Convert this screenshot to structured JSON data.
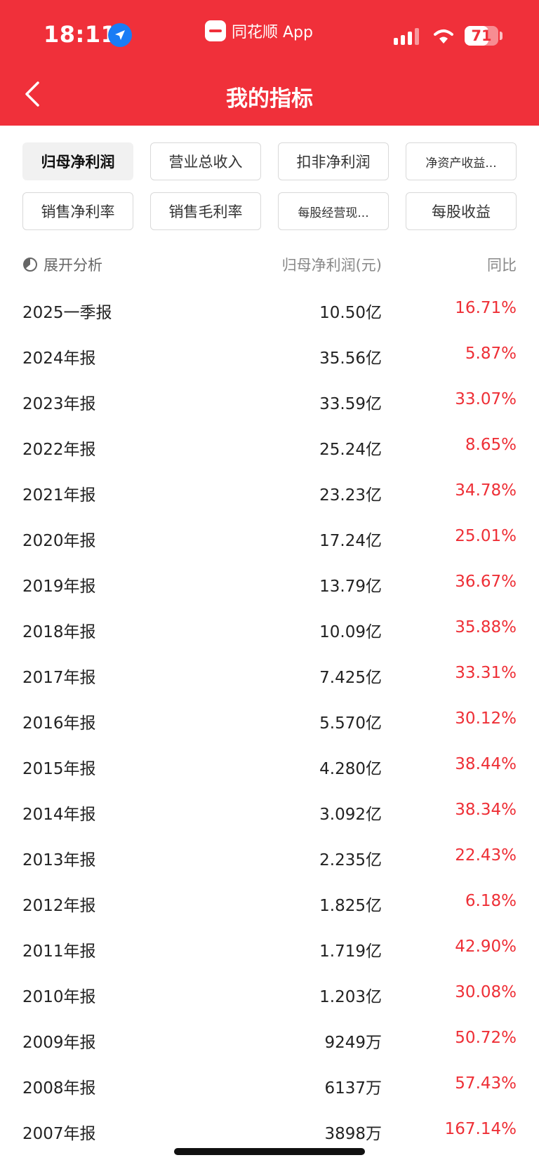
{
  "status_bar": {
    "time": "18:11",
    "app_name": "同花顺 App",
    "battery": "71",
    "battery_level": 0.71
  },
  "nav": {
    "title": "我的指标"
  },
  "tabs": [
    {
      "label": "归母净利润",
      "active": true
    },
    {
      "label": "营业总收入"
    },
    {
      "label": "扣非净利润"
    },
    {
      "label": "净资产收益..."
    },
    {
      "label": "销售净利率"
    },
    {
      "label": "销售毛利率"
    },
    {
      "label": "每股经营现..."
    },
    {
      "label": "每股收益"
    }
  ],
  "table": {
    "analysis_label": "展开分析",
    "value_header": "归母净利润(元)",
    "yoy_header": "同比",
    "rows": [
      {
        "period": "2025一季报",
        "value": "10.50亿",
        "yoy": "16.71%"
      },
      {
        "period": "2024年报",
        "value": "35.56亿",
        "yoy": "5.87%"
      },
      {
        "period": "2023年报",
        "value": "33.59亿",
        "yoy": "33.07%"
      },
      {
        "period": "2022年报",
        "value": "25.24亿",
        "yoy": "8.65%"
      },
      {
        "period": "2021年报",
        "value": "23.23亿",
        "yoy": "34.78%"
      },
      {
        "period": "2020年报",
        "value": "17.24亿",
        "yoy": "25.01%"
      },
      {
        "period": "2019年报",
        "value": "13.79亿",
        "yoy": "36.67%"
      },
      {
        "period": "2018年报",
        "value": "10.09亿",
        "yoy": "35.88%"
      },
      {
        "period": "2017年报",
        "value": "7.425亿",
        "yoy": "33.31%"
      },
      {
        "period": "2016年报",
        "value": "5.570亿",
        "yoy": "30.12%"
      },
      {
        "period": "2015年报",
        "value": "4.280亿",
        "yoy": "38.44%"
      },
      {
        "period": "2014年报",
        "value": "3.092亿",
        "yoy": "38.34%"
      },
      {
        "period": "2013年报",
        "value": "2.235亿",
        "yoy": "22.43%"
      },
      {
        "period": "2012年报",
        "value": "1.825亿",
        "yoy": "6.18%"
      },
      {
        "period": "2011年报",
        "value": "1.719亿",
        "yoy": "42.90%"
      },
      {
        "period": "2010年报",
        "value": "1.203亿",
        "yoy": "30.08%"
      },
      {
        "period": "2009年报",
        "value": "9249万",
        "yoy": "50.72%"
      },
      {
        "period": "2008年报",
        "value": "6137万",
        "yoy": "57.43%"
      },
      {
        "period": "2007年报",
        "value": "3898万",
        "yoy": "167.14%"
      }
    ]
  },
  "colors": {
    "brand_red": "#f0303a",
    "positive_red": "#ee2f36"
  }
}
